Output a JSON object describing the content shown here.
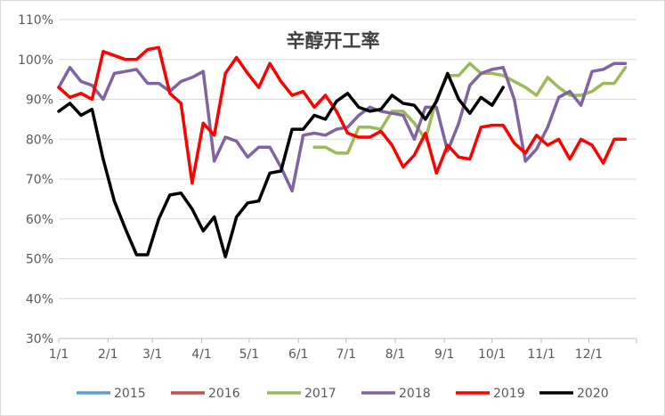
{
  "chart_data": {
    "type": "line",
    "title": "辛醇开工率",
    "xlabel": "",
    "ylabel": "",
    "x_tick_labels": [
      "1/1",
      "2/1",
      "3/1",
      "4/1",
      "5/1",
      "6/1",
      "7/1",
      "8/1",
      "9/1",
      "10/1",
      "11/1",
      "12/1"
    ],
    "y_tick_labels": [
      "30%",
      "40%",
      "50%",
      "60%",
      "70%",
      "80%",
      "90%",
      "100%",
      "110%"
    ],
    "ylim": [
      30,
      110
    ],
    "xlim": [
      0,
      52
    ],
    "x_unit": "week of year",
    "grid": "horizontal",
    "legend_position": "bottom",
    "series": [
      {
        "name": "2015",
        "color": "#5b9bd5",
        "x": [],
        "values": []
      },
      {
        "name": "2016",
        "color": "#c0504d",
        "x": [],
        "values": []
      },
      {
        "name": "2017",
        "color": "#9bbb59",
        "x": [
          23,
          24,
          25,
          26,
          27,
          28,
          29,
          30,
          31,
          32,
          33,
          34,
          35,
          36,
          37,
          38,
          39,
          40,
          41,
          42,
          43,
          44,
          45,
          46,
          47,
          48,
          49,
          50,
          51
        ],
        "values": [
          78,
          78,
          76.5,
          76.5,
          83,
          83,
          82.5,
          87,
          87,
          84,
          80,
          90,
          96,
          96,
          99,
          96.5,
          96.5,
          96,
          94.5,
          93,
          91,
          95.5,
          93,
          91,
          91,
          92,
          94,
          94,
          98
        ]
      },
      {
        "name": "2018",
        "color": "#8064a2",
        "x": [
          0,
          1,
          2,
          3,
          4,
          5,
          6,
          7,
          8,
          9,
          10,
          11,
          12,
          13,
          14,
          15,
          16,
          17,
          18,
          19,
          20,
          21,
          22,
          23,
          24,
          25,
          26,
          27,
          28,
          29,
          30,
          31,
          32,
          33,
          34,
          35,
          36,
          37,
          38,
          39,
          40,
          41,
          42,
          43,
          44,
          45,
          46,
          47,
          48,
          49,
          50,
          51
        ],
        "values": [
          93,
          98,
          94.5,
          93.5,
          90,
          96.5,
          97,
          97.5,
          94,
          94,
          92,
          94.5,
          95.5,
          97,
          74.5,
          80.5,
          79.5,
          75.5,
          78,
          78,
          73,
          67,
          81,
          81.5,
          81,
          82.5,
          83,
          86,
          88,
          87,
          86.5,
          86,
          80,
          88,
          88,
          77,
          84,
          93.5,
          96.5,
          97.5,
          98,
          90,
          74.5,
          77.5,
          83,
          90.5,
          92,
          88.5,
          97,
          97.5,
          99,
          99
        ]
      },
      {
        "name": "2019",
        "color": "#ff0000",
        "x": [
          0,
          1,
          2,
          3,
          4,
          5,
          6,
          7,
          8,
          9,
          10,
          11,
          12,
          13,
          14,
          15,
          16,
          17,
          18,
          19,
          20,
          21,
          22,
          23,
          24,
          25,
          26,
          27,
          28,
          29,
          30,
          31,
          32,
          33,
          34,
          35,
          36,
          37,
          38,
          39,
          40,
          41,
          42,
          43,
          44,
          45,
          46,
          47,
          48,
          49,
          50,
          51
        ],
        "values": [
          93,
          90.5,
          91.5,
          90,
          102,
          101,
          100,
          100,
          102.5,
          103,
          91.5,
          89,
          69,
          84,
          81,
          96.5,
          100.5,
          96.5,
          93,
          99,
          94.5,
          91,
          92,
          88,
          91,
          87,
          81.5,
          80.5,
          80.5,
          82,
          78.5,
          73,
          76,
          81.5,
          71.5,
          78.5,
          75.5,
          75,
          83,
          83.5,
          83.5,
          79,
          76.5,
          81,
          78.5,
          80,
          75,
          80,
          78.5,
          74,
          80,
          80
        ]
      },
      {
        "name": "2020",
        "color": "#000000",
        "x": [
          0,
          1,
          2,
          3,
          4,
          5,
          6,
          7,
          8,
          9,
          10,
          11,
          12,
          13,
          14,
          15,
          16,
          17,
          18,
          19,
          20,
          21,
          22,
          23,
          24,
          25,
          26,
          27,
          28,
          29,
          30,
          31,
          32,
          33,
          34,
          35,
          36,
          37,
          38,
          39,
          40
        ],
        "values": [
          87,
          89,
          86,
          87.5,
          75,
          64.5,
          57.5,
          51,
          51,
          60,
          66,
          66.5,
          62.5,
          57,
          60.5,
          50.5,
          60.5,
          64,
          64.5,
          71.5,
          72,
          82.5,
          82.5,
          86,
          85,
          89.5,
          91.5,
          88,
          87,
          87.5,
          91,
          89,
          88.5,
          85,
          89.5,
          96.5,
          90,
          86.5,
          90.5,
          88.5,
          93
        ]
      }
    ]
  }
}
